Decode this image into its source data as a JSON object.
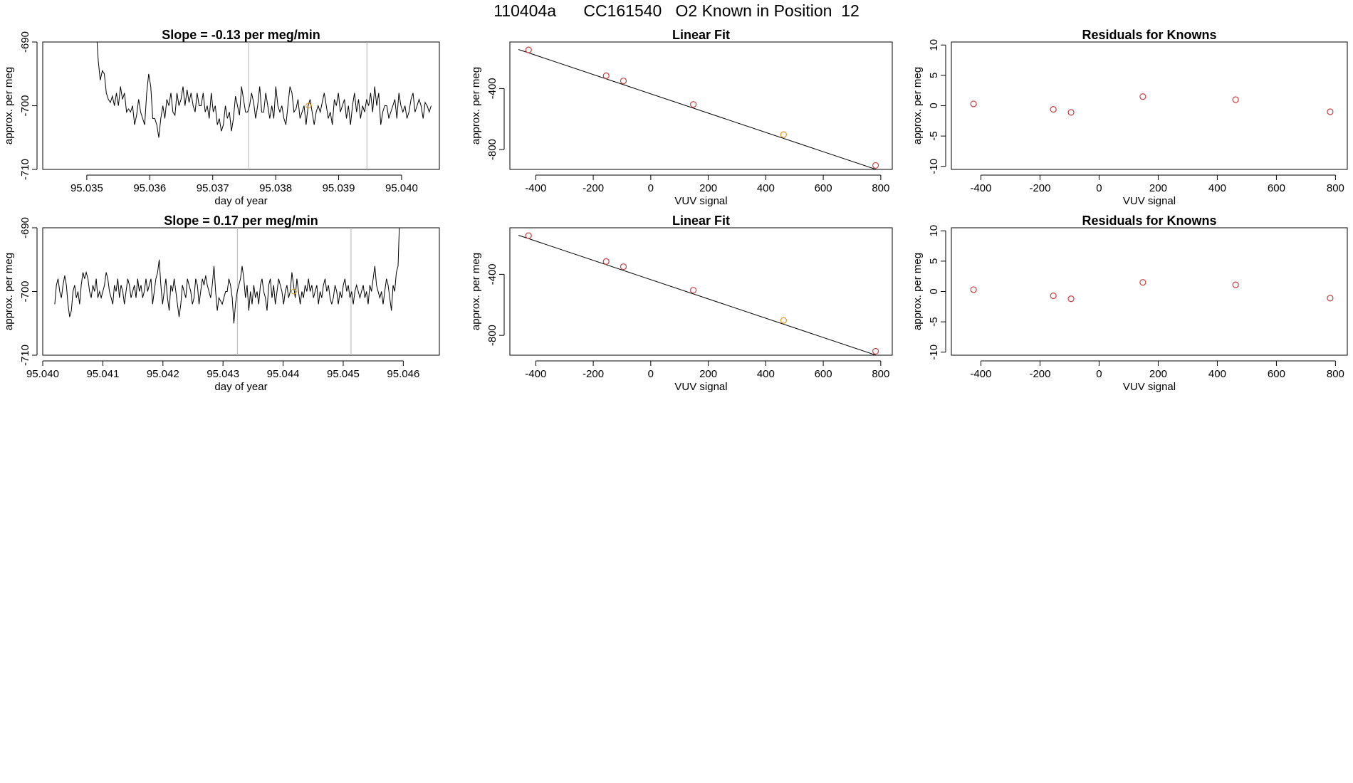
{
  "page": {
    "title": "110404a      CC161540   O2 Known in Position  12"
  },
  "colors": {
    "line": "#000000",
    "frame": "#000000",
    "vertical_marker": "#bebebe",
    "point_red": "#cd3c3c",
    "point_orange": "#e6961e"
  },
  "chart_data": [
    {
      "type": "line",
      "title": "Slope =  -0.13  per meg/min",
      "xlabel": "day of year",
      "ylabel": "approx. per meg",
      "xlim": [
        95.0343,
        95.0406
      ],
      "ylim": [
        -710,
        -690
      ],
      "xticks": [
        "95.035",
        "95.036",
        "95.037",
        "95.038",
        "95.039",
        "95.040"
      ],
      "xtick_values": [
        95.035,
        95.036,
        95.037,
        95.038,
        95.039,
        95.04
      ],
      "yticks": [
        "-690",
        "-700",
        "-710"
      ],
      "ytick_values": [
        -690,
        -700,
        -710
      ],
      "vlines": [
        95.03757,
        95.03945
      ],
      "highlight": {
        "x": 95.03852,
        "y": -700
      },
      "x_start": 95.03515,
      "x_end": 95.04047,
      "y": [
        -688,
        -693,
        -696,
        -694.5,
        -695,
        -698,
        -699,
        -699.5,
        -698.5,
        -700,
        -698,
        -700,
        -697,
        -699,
        -698,
        -701,
        -700.5,
        -701,
        -700,
        -703,
        -701.5,
        -699,
        -701,
        -702,
        -703,
        -698,
        -695,
        -697,
        -702,
        -702,
        -703,
        -705,
        -702,
        -700,
        -702,
        -699,
        -700,
        -698,
        -701,
        -701.5,
        -698,
        -700,
        -699,
        -697,
        -700,
        -697.5,
        -699.5,
        -698,
        -700,
        -701,
        -698,
        -700,
        -700,
        -698,
        -701,
        -700,
        -702,
        -698,
        -701,
        -700,
        -703,
        -702,
        -704,
        -703,
        -700,
        -702,
        -701,
        -704,
        -702,
        -698.5,
        -700,
        -701.5,
        -697,
        -699,
        -701,
        -701,
        -700,
        -698,
        -699.5,
        -702,
        -700,
        -697,
        -701,
        -701,
        -698,
        -700,
        -702,
        -700,
        -702,
        -697,
        -700,
        -701,
        -700,
        -702,
        -703,
        -700,
        -697,
        -698,
        -701,
        -700.5,
        -699,
        -702,
        -701,
        -700,
        -703,
        -700,
        -699,
        -701,
        -703,
        -701,
        -700,
        -701,
        -699.5,
        -698,
        -700,
        -702,
        -701,
        -703,
        -699,
        -700,
        -698,
        -701,
        -700,
        -699,
        -702,
        -700,
        -703,
        -700,
        -698,
        -701,
        -699,
        -702,
        -700,
        -701,
        -699,
        -700,
        -698,
        -701,
        -697,
        -700,
        -698,
        -703,
        -701,
        -700,
        -700,
        -702,
        -701,
        -700,
        -699,
        -702,
        -698,
        -700,
        -701,
        -700,
        -702,
        -701,
        -699,
        -698,
        -701,
        -700,
        -699,
        -700,
        -702,
        -699.5,
        -700,
        -701,
        -700
      ]
    },
    {
      "type": "scatter",
      "title": "Linear Fit",
      "xlabel": "VUV signal",
      "ylabel": "approx. per meg",
      "xlim": [
        -490,
        840
      ],
      "ylim": [
        -930,
        -95
      ],
      "xticks": [
        "-400",
        "-200",
        "0",
        "200",
        "400",
        "600",
        "800"
      ],
      "xtick_values": [
        -400,
        -200,
        0,
        200,
        400,
        600,
        800
      ],
      "yticks": [
        "-400",
        "-800"
      ],
      "ytick_values": [
        -400,
        -800
      ],
      "fit_line": {
        "x": [
          -460,
          790
        ],
        "y": [
          -144,
          -934
        ]
      },
      "points": [
        {
          "x": -425,
          "y": -147,
          "color": "red"
        },
        {
          "x": -155,
          "y": -316,
          "color": "red"
        },
        {
          "x": -95,
          "y": -350,
          "color": "red"
        },
        {
          "x": 148,
          "y": -504,
          "color": "red"
        },
        {
          "x": 462,
          "y": -702,
          "color": "orange"
        },
        {
          "x": 782,
          "y": -904,
          "color": "red"
        }
      ]
    },
    {
      "type": "scatter",
      "title": "Residuals for Knowns",
      "xlabel": "VUV signal",
      "ylabel": "approx. per meg",
      "xlim": [
        -500,
        840
      ],
      "ylim": [
        -10.5,
        10.5
      ],
      "xticks": [
        "-400",
        "-200",
        "0",
        "200",
        "400",
        "600",
        "800"
      ],
      "xtick_values": [
        -400,
        -200,
        0,
        200,
        400,
        600,
        800
      ],
      "yticks": [
        "10",
        "5",
        "0",
        "-5",
        "-10"
      ],
      "ytick_values": [
        10,
        5,
        0,
        -5,
        -10
      ],
      "points": [
        {
          "x": -425,
          "y": 0.3,
          "color": "red"
        },
        {
          "x": -155,
          "y": -0.6,
          "color": "red"
        },
        {
          "x": -95,
          "y": -1.1,
          "color": "red"
        },
        {
          "x": 148,
          "y": 1.5,
          "color": "red"
        },
        {
          "x": 462,
          "y": 1.0,
          "color": "red"
        },
        {
          "x": 782,
          "y": -1.0,
          "color": "red"
        }
      ]
    },
    {
      "type": "line",
      "title": "Slope =  0.17  per meg/min",
      "xlabel": "day of year",
      "ylabel": "approx. per meg",
      "xlim": [
        95.04,
        95.0466
      ],
      "ylim": [
        -710,
        -690
      ],
      "xticks": [
        "95.040",
        "95.041",
        "95.042",
        "95.043",
        "95.044",
        "95.045",
        "95.046"
      ],
      "xtick_values": [
        95.04,
        95.041,
        95.042,
        95.043,
        95.044,
        95.045,
        95.046
      ],
      "yticks": [
        "-690",
        "-700",
        "-710"
      ],
      "ytick_values": [
        -690,
        -700,
        -710
      ],
      "vlines": [
        95.04324,
        95.04513
      ],
      "highlight": {
        "x": 95.04418,
        "y": -700
      },
      "x_start": 95.0402,
      "x_end": 95.04594,
      "y": [
        -702,
        -699,
        -698,
        -700,
        -701,
        -699,
        -697.5,
        -699,
        -702,
        -704,
        -703,
        -700,
        -699,
        -701,
        -700,
        -702,
        -699,
        -697,
        -698,
        -697,
        -698,
        -700,
        -701,
        -699,
        -700,
        -698,
        -701,
        -700,
        -701,
        -700,
        -699,
        -697,
        -698,
        -700,
        -701,
        -702,
        -699,
        -700,
        -698,
        -701,
        -699,
        -700,
        -702,
        -700,
        -698,
        -699,
        -701,
        -700,
        -699,
        -701,
        -698,
        -700,
        -699,
        -701,
        -700,
        -698,
        -700,
        -699,
        -698,
        -702,
        -700,
        -698,
        -697,
        -695,
        -699,
        -702,
        -700,
        -698,
        -701,
        -703,
        -699,
        -700,
        -698,
        -700,
        -702,
        -704,
        -702,
        -699,
        -700,
        -701,
        -698,
        -699,
        -700,
        -702,
        -701,
        -698,
        -699,
        -702,
        -700,
        -698,
        -699,
        -697.5,
        -699,
        -700,
        -701,
        -699,
        -696,
        -700,
        -703,
        -701,
        -701.5,
        -702,
        -701,
        -700,
        -700,
        -698,
        -699,
        -701,
        -705,
        -702,
        -700,
        -699,
        -698,
        -696,
        -698,
        -701,
        -699,
        -703,
        -700,
        -702,
        -699,
        -701,
        -700,
        -702,
        -699,
        -698,
        -700,
        -701,
        -703,
        -699,
        -698,
        -701,
        -699,
        -702,
        -700,
        -698,
        -699,
        -700,
        -702,
        -700,
        -699,
        -701,
        -700,
        -697,
        -699,
        -701,
        -698,
        -700,
        -702,
        -700,
        -701,
        -699,
        -700,
        -698,
        -700,
        -699,
        -701,
        -700,
        -699,
        -702,
        -700,
        -701,
        -699,
        -698,
        -700,
        -699,
        -701,
        -702,
        -701,
        -699,
        -700,
        -702,
        -700,
        -701,
        -699,
        -698,
        -700,
        -699,
        -701,
        -700,
        -702,
        -700,
        -699,
        -700,
        -701,
        -700,
        -699,
        -701,
        -700,
        -702,
        -699,
        -700,
        -698,
        -696,
        -699,
        -700,
        -701,
        -700,
        -702,
        -700,
        -698,
        -699,
        -701,
        -703,
        -699,
        -700,
        -697,
        -696,
        -688
      ]
    },
    {
      "type": "scatter",
      "title": "Linear Fit",
      "xlabel": "VUV signal",
      "ylabel": "approx. per meg",
      "xlim": [
        -490,
        840
      ],
      "ylim": [
        -930,
        -95
      ],
      "xticks": [
        "-400",
        "-200",
        "0",
        "200",
        "400",
        "600",
        "800"
      ],
      "xtick_values": [
        -400,
        -200,
        0,
        200,
        400,
        600,
        800
      ],
      "yticks": [
        "-400",
        "-800"
      ],
      "ytick_values": [
        -400,
        -800
      ],
      "fit_line": {
        "x": [
          -460,
          790
        ],
        "y": [
          -144,
          -934
        ]
      },
      "points": [
        {
          "x": -425,
          "y": -147,
          "color": "red"
        },
        {
          "x": -155,
          "y": -316,
          "color": "red"
        },
        {
          "x": -95,
          "y": -350,
          "color": "red"
        },
        {
          "x": 148,
          "y": -504,
          "color": "red"
        },
        {
          "x": 462,
          "y": -702,
          "color": "orange"
        },
        {
          "x": 782,
          "y": -904,
          "color": "red"
        }
      ]
    },
    {
      "type": "scatter",
      "title": "Residuals for Knowns",
      "xlabel": "VUV signal",
      "ylabel": "approx. per meg",
      "xlim": [
        -500,
        840
      ],
      "ylim": [
        -10.5,
        10.5
      ],
      "xticks": [
        "-400",
        "-200",
        "0",
        "200",
        "400",
        "600",
        "800"
      ],
      "xtick_values": [
        -400,
        -200,
        0,
        200,
        400,
        600,
        800
      ],
      "yticks": [
        "10",
        "5",
        "0",
        "-5",
        "-10"
      ],
      "ytick_values": [
        10,
        5,
        0,
        -5,
        -10
      ],
      "points": [
        {
          "x": -425,
          "y": 0.3,
          "color": "red"
        },
        {
          "x": -155,
          "y": -0.7,
          "color": "red"
        },
        {
          "x": -95,
          "y": -1.2,
          "color": "red"
        },
        {
          "x": 148,
          "y": 1.5,
          "color": "red"
        },
        {
          "x": 462,
          "y": 1.1,
          "color": "red"
        },
        {
          "x": 782,
          "y": -1.1,
          "color": "red"
        }
      ]
    }
  ]
}
